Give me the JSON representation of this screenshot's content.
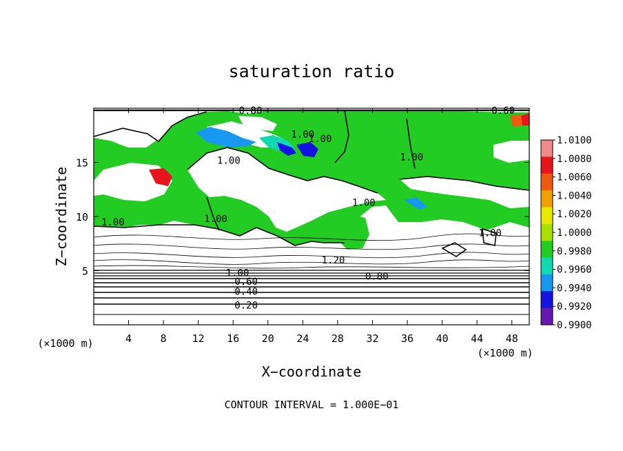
{
  "chart_data": {
    "type": "heatmap",
    "title": "saturation ratio",
    "xlabel": "X−coordinate",
    "ylabel": "Z−coordinate",
    "x_unit": "(×1000 m)",
    "y_unit": "(×1000 m)",
    "xlim": [
      0,
      50
    ],
    "ylim": [
      0,
      20
    ],
    "x_ticks": [
      4,
      8,
      12,
      16,
      20,
      24,
      28,
      32,
      36,
      40,
      44,
      48
    ],
    "y_ticks": [
      5,
      10,
      15
    ],
    "footer": "CONTOUR INTERVAL = 1.000E−01",
    "colorbar": {
      "ticks": [
        "1.0100",
        "1.0080",
        "1.0060",
        "1.0040",
        "1.0020",
        "1.0000",
        "0.9980",
        "0.9960",
        "0.9940",
        "0.9920",
        "0.9900"
      ],
      "colors": [
        "#f08a8a",
        "#e8141c",
        "#f05a10",
        "#f0a000",
        "#e8e800",
        "#a8e000",
        "#22cc22",
        "#10d8b0",
        "#1898f0",
        "#1414e0",
        "#6818b0"
      ]
    },
    "contour_labels": [
      {
        "text": "0.80",
        "x": 18.0,
        "y": 19.8
      },
      {
        "text": "0.60",
        "x": 47.0,
        "y": 19.8
      },
      {
        "text": "1.00",
        "x": 24.0,
        "y": 17.6
      },
      {
        "text": "1.00",
        "x": 26.0,
        "y": 17.2
      },
      {
        "text": "1.00",
        "x": 15.5,
        "y": 15.2
      },
      {
        "text": "1.00",
        "x": 36.5,
        "y": 15.5
      },
      {
        "text": "1.00",
        "x": 31.0,
        "y": 11.3
      },
      {
        "text": "1.00",
        "x": 14.0,
        "y": 9.8
      },
      {
        "text": "1.00",
        "x": 2.2,
        "y": 9.5
      },
      {
        "text": "1.00",
        "x": 45.5,
        "y": 8.5
      },
      {
        "text": "1.20",
        "x": 27.5,
        "y": 6.0
      },
      {
        "text": "0.80",
        "x": 32.5,
        "y": 4.5
      },
      {
        "text": "1.00",
        "x": 16.5,
        "y": 4.8
      },
      {
        "text": "0.60",
        "x": 17.5,
        "y": 4.0
      },
      {
        "text": "0.40",
        "x": 17.5,
        "y": 3.1
      },
      {
        "text": "0.20",
        "x": 17.5,
        "y": 1.8
      }
    ]
  }
}
